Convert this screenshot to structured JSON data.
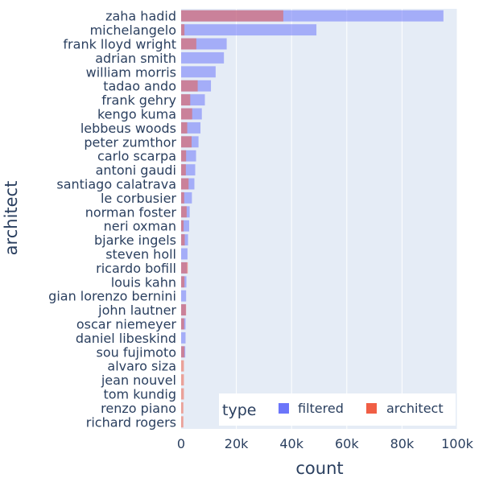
{
  "chart_data": {
    "type": "bar",
    "orientation": "horizontal",
    "barmode": "overlay",
    "categories": [
      "zaha hadid",
      "michelangelo",
      "frank lloyd wright",
      "adrian smith",
      "william morris",
      "tadao ando",
      "frank gehry",
      "kengo kuma",
      "lebbeus woods",
      "peter zumthor",
      "carlo scarpa",
      "antoni gaudi",
      "santiago calatrava",
      "le corbusier",
      "norman foster",
      "neri oxman",
      "bjarke ingels",
      "steven holl",
      "ricardo bofill",
      "louis kahn",
      "gian lorenzo bernini",
      "john lautner",
      "oscar niemeyer",
      "daniel libeskind",
      "sou fujimoto",
      "alvaro siza",
      "jean nouvel",
      "tom kundig",
      "renzo piano",
      "richard rogers"
    ],
    "series": [
      {
        "name": "filtered",
        "color": "#636efa",
        "values": [
          95000,
          49000,
          16500,
          15500,
          12500,
          10800,
          8600,
          7500,
          7000,
          6300,
          5400,
          5100,
          4800,
          3900,
          3100,
          2900,
          2500,
          2300,
          2100,
          1900,
          1800,
          1700,
          1600,
          1600,
          1500,
          0,
          0,
          0,
          0,
          0
        ]
      },
      {
        "name": "architect",
        "color": "#ef553b",
        "values": [
          37000,
          1200,
          5500,
          0,
          0,
          6000,
          3300,
          4000,
          2200,
          3800,
          1800,
          1700,
          2700,
          1100,
          2000,
          900,
          1300,
          0,
          2400,
          1200,
          0,
          1800,
          1100,
          0,
          1200,
          1000,
          1000,
          1000,
          800,
          800
        ]
      }
    ],
    "xlabel": "count",
    "ylabel": "architect",
    "xlim": [
      0,
      100000
    ],
    "xticks": [
      {
        "value": 0,
        "label": "0"
      },
      {
        "value": 20000,
        "label": "20k"
      },
      {
        "value": 40000,
        "label": "40k"
      },
      {
        "value": 60000,
        "label": "60k"
      },
      {
        "value": 80000,
        "label": "80k"
      },
      {
        "value": 100000,
        "label": "100k"
      }
    ],
    "grid": "vertical",
    "legend": {
      "title": "type",
      "position": "bottom-right",
      "orientation": "horizontal"
    },
    "plot_bg": "#e5ecf6"
  }
}
